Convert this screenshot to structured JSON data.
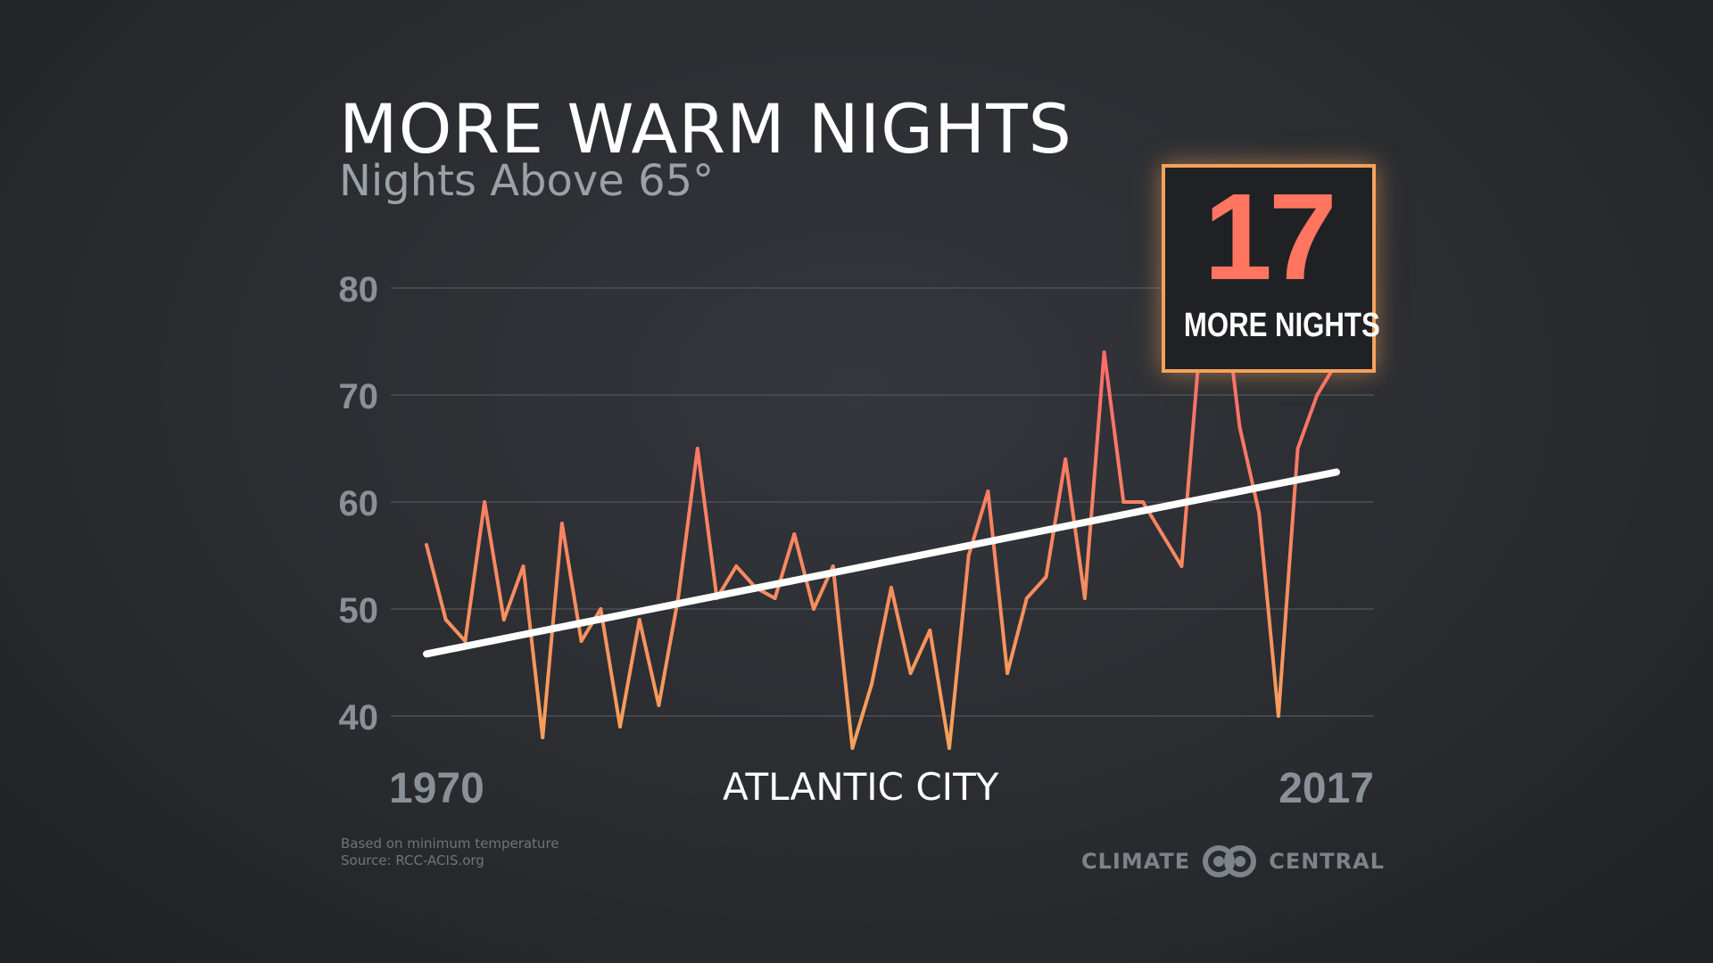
{
  "header": {
    "title": "MORE WARM NIGHTS",
    "subtitle": "Nights Above 65°"
  },
  "callout": {
    "value": "17",
    "label": "MORE NIGHTS"
  },
  "footer": {
    "city": "ATLANTIC CITY",
    "note_line1": "Based on minimum temperature",
    "note_line2": "Source: RCC-ACIS.org",
    "logo_left": "CLIMATE",
    "logo_right": "CENTRAL",
    "logo_icon": "interlocking-rings-icon"
  },
  "colors": {
    "background": "#2a2c30",
    "line_low": "#f5a25a",
    "line_high": "#ff5f6d",
    "trend": "#ffffff",
    "accent_box": "#f5a25a",
    "accent_number": "#ff7560"
  },
  "chart_data": {
    "type": "line",
    "x": [
      1970,
      1971,
      1972,
      1973,
      1974,
      1975,
      1976,
      1977,
      1978,
      1979,
      1980,
      1981,
      1982,
      1983,
      1984,
      1985,
      1986,
      1987,
      1988,
      1989,
      1990,
      1991,
      1992,
      1993,
      1994,
      1995,
      1996,
      1997,
      1998,
      1999,
      2000,
      2001,
      2002,
      2003,
      2004,
      2005,
      2006,
      2007,
      2008,
      2009,
      2010,
      2011,
      2012,
      2013,
      2014,
      2015,
      2016,
      2017
    ],
    "series": [
      {
        "values": [
          56,
          49,
          47,
          60,
          49,
          54,
          38,
          58,
          47,
          50,
          39,
          49,
          41,
          51,
          65,
          51,
          54,
          52,
          51,
          57,
          50,
          54,
          37,
          43,
          52,
          44,
          48,
          37,
          55,
          61,
          44,
          51,
          53,
          64,
          51,
          74,
          60,
          60,
          57,
          54,
          76,
          82,
          67,
          59,
          40,
          65,
          70,
          73
        ]
      }
    ],
    "trend": {
      "start_year": 1970,
      "start_value": 45.8,
      "end_year": 2017,
      "end_value": 62.8
    },
    "yticks": [
      40,
      50,
      60,
      70,
      80
    ],
    "ylim": [
      37,
      82
    ],
    "xtick_labels": [
      "1970",
      "2017"
    ],
    "grid": true
  }
}
